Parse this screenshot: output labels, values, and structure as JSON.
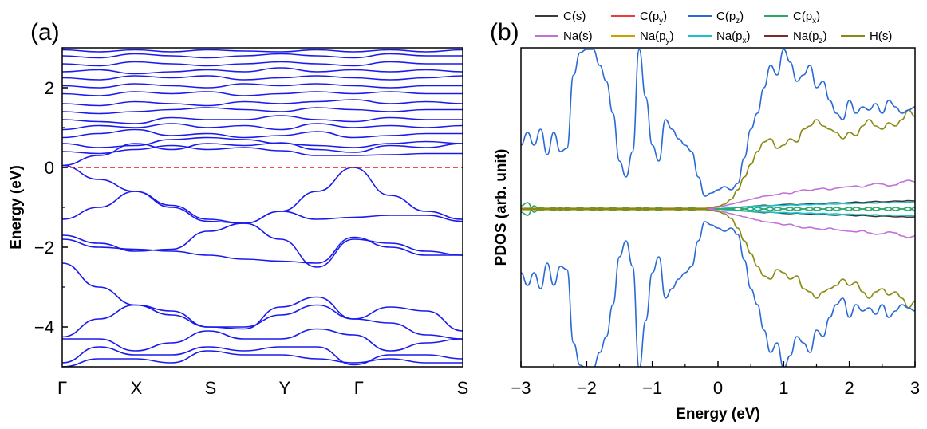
{
  "chart_data": [
    {
      "type": "line",
      "panel_label": "(a)",
      "xlabel": "",
      "ylabel": "Energy (eV)",
      "ylim": [
        -5,
        3
      ],
      "yticks": [
        -4,
        -2,
        0,
        2
      ],
      "yticks_text": [
        "−4",
        "−2",
        "0",
        "2"
      ],
      "kpoints": [
        "Γ",
        "X",
        "S",
        "Y",
        "Γ",
        "S"
      ],
      "kpoint_positions": [
        0,
        1,
        2,
        3,
        4,
        5.4
      ],
      "fermi_level": 0,
      "colors": {
        "bands": "#1a1aee",
        "fermi": "#e8141c"
      },
      "series": [
        {
          "values": [
            0.05,
            0.3,
            0.6,
            0.45,
            0.6,
            0.55,
            0.62,
            0.45,
            0.38,
            0.55,
            0.5,
            0.6
          ]
        },
        {
          "values": [
            0.4,
            0.35,
            0.45,
            0.55,
            0.45,
            0.5,
            0.42,
            0.3,
            0.3,
            0.32,
            0.35,
            0.35
          ]
        },
        {
          "values": [
            0.6,
            0.5,
            0.55,
            0.7,
            0.75,
            0.7,
            0.6,
            0.55,
            0.5,
            0.6,
            0.65,
            0.6
          ]
        },
        {
          "values": [
            0.75,
            0.85,
            0.95,
            0.8,
            0.85,
            0.75,
            0.8,
            0.9,
            0.75,
            0.8,
            0.85,
            0.85
          ]
        },
        {
          "values": [
            0.95,
            1.05,
            1.0,
            1.1,
            1.0,
            1.05,
            0.95,
            1.1,
            1.0,
            1.05,
            1.0,
            1.05
          ]
        },
        {
          "values": [
            1.2,
            1.15,
            1.1,
            1.25,
            1.2,
            1.2,
            1.3,
            1.2,
            1.15,
            1.25,
            1.2,
            1.2
          ]
        },
        {
          "values": [
            1.4,
            1.35,
            1.4,
            1.45,
            1.5,
            1.45,
            1.4,
            1.5,
            1.45,
            1.4,
            1.45,
            1.45
          ]
        },
        {
          "values": [
            1.6,
            1.55,
            1.65,
            1.6,
            1.55,
            1.65,
            1.6,
            1.65,
            1.7,
            1.6,
            1.65,
            1.6
          ]
        },
        {
          "values": [
            1.85,
            1.8,
            1.9,
            1.85,
            1.9,
            1.8,
            1.85,
            1.9,
            1.85,
            1.9,
            1.85,
            1.85
          ]
        },
        {
          "values": [
            2.05,
            2.0,
            2.1,
            2.05,
            2.0,
            2.1,
            2.05,
            2.1,
            2.05,
            2.0,
            2.05,
            2.05
          ]
        },
        {
          "values": [
            2.25,
            2.2,
            2.3,
            2.25,
            2.3,
            2.2,
            2.25,
            2.3,
            2.25,
            2.2,
            2.25,
            2.3
          ]
        },
        {
          "values": [
            2.4,
            2.45,
            2.35,
            2.4,
            2.45,
            2.4,
            2.5,
            2.4,
            2.45,
            2.4,
            2.45,
            2.4
          ]
        },
        {
          "values": [
            2.6,
            2.55,
            2.65,
            2.6,
            2.55,
            2.6,
            2.65,
            2.6,
            2.55,
            2.65,
            2.6,
            2.6
          ]
        },
        {
          "values": [
            2.8,
            2.75,
            2.85,
            2.8,
            2.75,
            2.8,
            2.85,
            2.8,
            2.75,
            2.85,
            2.8,
            2.8
          ]
        },
        {
          "values": [
            2.95,
            2.9,
            2.95,
            2.9,
            2.95,
            2.92,
            2.9,
            2.95,
            2.9,
            2.95,
            2.9,
            2.95
          ]
        },
        {
          "values": [
            0.05,
            -0.3,
            -0.6,
            -0.95,
            -1.3,
            -1.4,
            -1.1,
            -0.6,
            0.0,
            -0.7,
            -1.1,
            -1.3
          ]
        },
        {
          "values": [
            -1.3,
            -1.0,
            -0.6,
            -1.0,
            -1.35,
            -1.4,
            -1.1,
            -1.3,
            -1.25,
            -1.2,
            -1.2,
            -1.35
          ]
        },
        {
          "values": [
            -1.7,
            -1.9,
            -2.1,
            -2.05,
            -1.6,
            -1.4,
            -1.8,
            -2.5,
            -1.8,
            -1.9,
            -2.1,
            -2.2
          ]
        },
        {
          "values": [
            -1.8,
            -2.0,
            -2.05,
            -2.1,
            -2.2,
            -2.3,
            -2.35,
            -2.4,
            -1.75,
            -2.0,
            -2.2,
            -2.2
          ]
        },
        {
          "values": [
            -2.4,
            -3.0,
            -3.45,
            -3.7,
            -4.0,
            -4.05,
            -3.5,
            -3.25,
            -3.8,
            -3.5,
            -3.6,
            -4.1
          ]
        },
        {
          "values": [
            -4.25,
            -3.8,
            -3.45,
            -3.6,
            -4.0,
            -4.0,
            -3.7,
            -3.45,
            -3.8,
            -3.9,
            -4.2,
            -4.3
          ]
        },
        {
          "values": [
            -4.3,
            -4.3,
            -4.6,
            -4.4,
            -4.1,
            -4.3,
            -4.3,
            -4.05,
            -4.2,
            -4.6,
            -4.4,
            -4.3
          ]
        },
        {
          "values": [
            -4.9,
            -4.5,
            -4.7,
            -4.7,
            -4.5,
            -4.6,
            -4.5,
            -4.5,
            -4.95,
            -4.7,
            -4.7,
            -4.8
          ]
        },
        {
          "values": [
            -5.0,
            -4.8,
            -4.8,
            -4.9,
            -4.6,
            -4.7,
            -4.7,
            -4.8,
            -4.9,
            -4.8,
            -4.9,
            -4.9
          ]
        }
      ]
    },
    {
      "type": "line",
      "panel_label": "(b)",
      "xlabel": "Energy (eV)",
      "ylabel": "PDOS (arb. unit)",
      "xlim": [
        -3,
        3
      ],
      "xticks": [
        -3,
        -2,
        -1,
        0,
        1,
        2,
        3
      ],
      "xticks_text": [
        "−3",
        "−2",
        "−1",
        "0",
        "1",
        "2",
        "3"
      ],
      "ylim": [
        -5,
        5
      ],
      "legend_position": "top",
      "legend": [
        {
          "name": "C(s)",
          "color": "#3a3a3a",
          "main": "C(s)",
          "sub": ""
        },
        {
          "name": "C(py)",
          "color": "#ee3a3a",
          "main": "C(p",
          "sub": "y",
          "close": ")"
        },
        {
          "name": "C(pz)",
          "color": "#2a6ad6",
          "main": "C(p",
          "sub": "z",
          "close": ")"
        },
        {
          "name": "C(px)",
          "color": "#2aa86a",
          "main": "C(p",
          "sub": "x",
          "close": ")"
        },
        {
          "name": "Na(s)",
          "color": "#c070d8",
          "main": "Na(s)",
          "sub": ""
        },
        {
          "name": "Na(py)",
          "color": "#c8a000",
          "main": "Na(p",
          "sub": "y",
          "close": ")"
        },
        {
          "name": "Na(px)",
          "color": "#18c0d0",
          "main": "Na(p",
          "sub": "x",
          "close": ")"
        },
        {
          "name": "Na(pz)",
          "color": "#7a2a2a",
          "main": "Na(p",
          "sub": "z",
          "close": ")"
        },
        {
          "name": "H(s)",
          "color": "#8a8a10",
          "main": "H(s)",
          "sub": ""
        }
      ],
      "x": [
        -3.0,
        -2.9,
        -2.8,
        -2.7,
        -2.6,
        -2.5,
        -2.4,
        -2.3,
        -2.2,
        -2.1,
        -2.0,
        -1.9,
        -1.8,
        -1.7,
        -1.6,
        -1.5,
        -1.4,
        -1.3,
        -1.2,
        -1.1,
        -1.0,
        -0.9,
        -0.8,
        -0.7,
        -0.6,
        -0.5,
        -0.4,
        -0.3,
        -0.2,
        -0.1,
        0.0,
        0.1,
        0.2,
        0.3,
        0.4,
        0.5,
        0.6,
        0.7,
        0.8,
        0.9,
        1.0,
        1.1,
        1.2,
        1.3,
        1.4,
        1.5,
        1.6,
        1.7,
        1.8,
        1.9,
        2.0,
        2.1,
        2.2,
        2.3,
        2.4,
        2.5,
        2.6,
        2.7,
        2.8,
        2.9,
        3.0
      ],
      "series": [
        {
          "name": "C(pz)",
          "values": [
            2.0,
            2.4,
            2.0,
            2.5,
            1.7,
            2.4,
            1.8,
            1.9,
            4.2,
            4.9,
            5.0,
            5.0,
            4.5,
            4.0,
            3.0,
            1.5,
            1.0,
            1.8,
            5.0,
            3.5,
            2.0,
            1.5,
            2.8,
            2.5,
            2.2,
            2.0,
            1.8,
            1.0,
            0.4,
            0.5,
            0.6,
            0.7,
            0.6,
            0.8,
            1.6,
            2.5,
            3.0,
            3.8,
            4.5,
            4.2,
            5.0,
            4.6,
            4.0,
            4.2,
            4.5,
            3.8,
            4.0,
            3.4,
            3.0,
            2.8,
            3.4,
            3.0,
            3.2,
            3.1,
            3.3,
            3.0,
            3.4,
            3.2,
            3.0,
            3.1,
            3.2
          ]
        },
        {
          "name": "H(s)",
          "values": [
            0.02,
            0.02,
            0.02,
            0.02,
            0.02,
            0.02,
            0.02,
            0.02,
            0.02,
            0.02,
            0.02,
            0.02,
            0.02,
            0.02,
            0.02,
            0.02,
            0.02,
            0.02,
            0.02,
            0.02,
            0.02,
            0.02,
            0.02,
            0.02,
            0.02,
            0.02,
            0.02,
            0.02,
            0.02,
            0.05,
            0.08,
            0.15,
            0.3,
            0.6,
            1.0,
            1.4,
            1.8,
            2.1,
            2.2,
            1.9,
            2.0,
            2.2,
            2.1,
            2.5,
            2.6,
            2.8,
            2.6,
            2.5,
            2.4,
            2.2,
            2.4,
            2.3,
            2.6,
            2.8,
            2.6,
            2.5,
            2.7,
            2.6,
            2.8,
            3.1,
            2.9
          ]
        },
        {
          "name": "Na(s)",
          "values": [
            0.0,
            0.0,
            0.0,
            0.0,
            0.0,
            0.0,
            0.0,
            0.0,
            0.0,
            0.0,
            0.0,
            0.0,
            0.0,
            0.0,
            0.0,
            0.0,
            0.0,
            0.0,
            0.0,
            0.0,
            0.0,
            0.0,
            0.0,
            0.0,
            0.0,
            0.0,
            0.0,
            0.0,
            0.0,
            0.02,
            0.05,
            0.1,
            0.15,
            0.2,
            0.25,
            0.3,
            0.35,
            0.4,
            0.42,
            0.45,
            0.5,
            0.48,
            0.55,
            0.6,
            0.58,
            0.62,
            0.65,
            0.6,
            0.65,
            0.68,
            0.7,
            0.72,
            0.68,
            0.75,
            0.8,
            0.78,
            0.72,
            0.75,
            0.85,
            0.9,
            0.85
          ]
        },
        {
          "name": "C(px)",
          "values": [
            0.1,
            0.2,
            -0.1,
            0.05,
            0.0,
            0.05,
            -0.05,
            0.05,
            0.0,
            0.05,
            0.0,
            -0.05,
            0.05,
            0.0,
            0.05,
            0.0,
            0.05,
            0.0,
            -0.05,
            0.05,
            0.0,
            0.05,
            0.0,
            0.0,
            0.05,
            0.0,
            0.05,
            0.0,
            0.0,
            0.0,
            0.0,
            0.0,
            0.0,
            -0.05,
            0.0,
            -0.05,
            0.05,
            0.0,
            -0.05,
            0.05,
            0.0,
            -0.05,
            0.05,
            0.0,
            -0.05,
            0.05,
            0.0,
            -0.05,
            0.05,
            0.0,
            -0.05,
            0.05,
            0.0,
            -0.05,
            0.05,
            0.0,
            -0.05,
            0.05,
            0.0,
            -0.05,
            0.05
          ]
        },
        {
          "name": "Na(px)",
          "values": [
            0.0,
            0.0,
            0.0,
            0.0,
            0.0,
            0.0,
            0.0,
            0.0,
            0.0,
            0.0,
            0.0,
            0.0,
            0.0,
            0.0,
            0.0,
            0.0,
            0.0,
            0.0,
            0.0,
            0.0,
            0.0,
            0.0,
            0.0,
            0.0,
            0.0,
            0.0,
            0.0,
            0.0,
            0.0,
            0.0,
            0.0,
            0.02,
            0.04,
            0.05,
            0.07,
            0.08,
            0.09,
            0.1,
            0.1,
            0.12,
            0.11,
            0.13,
            0.12,
            0.14,
            0.13,
            0.15,
            0.14,
            0.16,
            0.15,
            0.17,
            0.16,
            0.18,
            0.17,
            0.19,
            0.18,
            0.2,
            0.19,
            0.2,
            0.2,
            0.21,
            0.2
          ]
        },
        {
          "name": "C(s)",
          "values": [
            0.0,
            0.0,
            0.0,
            0.0,
            0.0,
            0.0,
            0.0,
            0.0,
            0.0,
            0.0,
            0.0,
            0.0,
            0.0,
            0.0,
            0.0,
            0.0,
            0.0,
            0.0,
            0.0,
            0.0,
            0.0,
            0.0,
            0.0,
            0.0,
            0.0,
            0.0,
            0.0,
            0.0,
            0.0,
            0.0,
            0.0,
            0.02,
            0.03,
            0.05,
            0.06,
            0.08,
            0.1,
            0.12,
            0.1,
            0.12,
            0.14,
            0.15,
            0.13,
            0.15,
            0.16,
            0.18,
            0.17,
            0.19,
            0.2,
            0.18,
            0.2,
            0.22,
            0.2,
            0.22,
            0.24,
            0.22,
            0.23,
            0.25,
            0.24,
            0.26,
            0.25
          ]
        }
      ]
    }
  ]
}
